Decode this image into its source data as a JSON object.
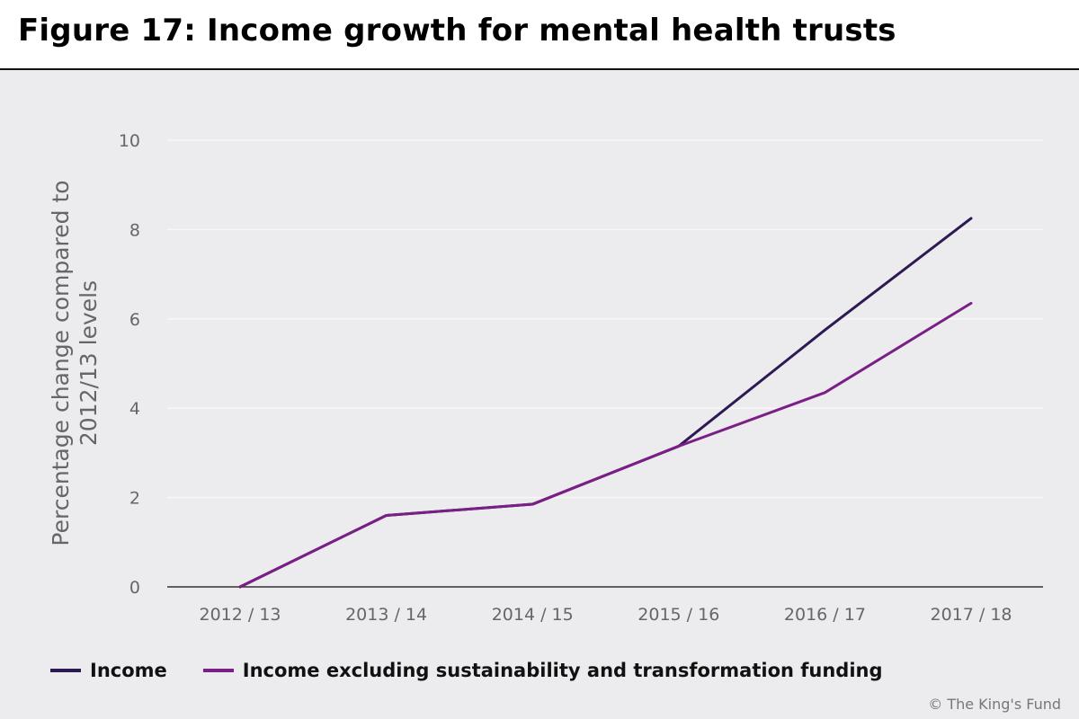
{
  "header": {
    "title": "Figure 17: Income growth for mental health trusts"
  },
  "credit": "© The King's Fund",
  "colors": {
    "panel_background": "#ececef",
    "gridline": "#f7f7f8",
    "axis": "#333333",
    "tick_text": "#666666"
  },
  "chart_data": {
    "type": "line",
    "title": "Figure 17: Income growth for mental health trusts",
    "xlabel": "",
    "ylabel": "Percentage change compared to 2012/13 levels",
    "categories": [
      "2012 / 13",
      "2013 / 14",
      "2014 / 15",
      "2015 / 16",
      "2016 / 17",
      "2017 / 18"
    ],
    "yticks": [
      0,
      2,
      4,
      6,
      8,
      10
    ],
    "ylim": [
      0,
      10
    ],
    "grid": true,
    "legend_position": "bottom",
    "series": [
      {
        "name": "Income",
        "color": "#2e1a52",
        "values": [
          0,
          1.6,
          1.85,
          3.15,
          5.75,
          8.25
        ]
      },
      {
        "name": "Income excluding sustainability and transformation funding",
        "color": "#7a1f86",
        "values": [
          0,
          1.6,
          1.85,
          3.15,
          4.35,
          6.35
        ]
      }
    ]
  }
}
